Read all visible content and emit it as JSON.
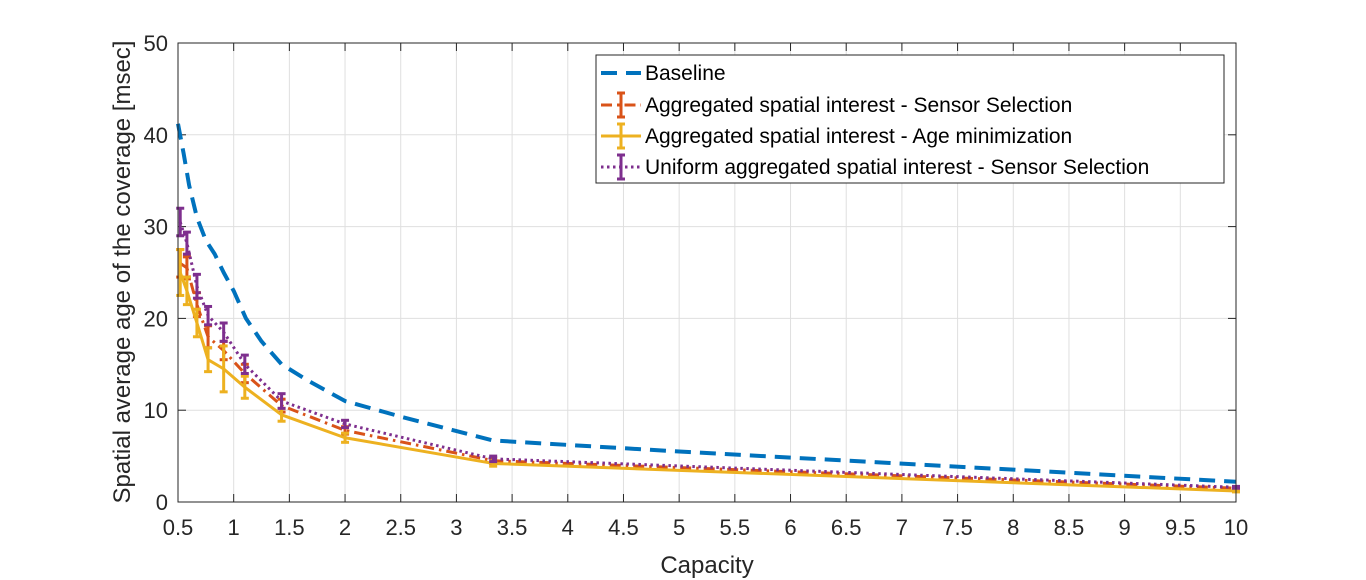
{
  "chart_data": {
    "type": "line",
    "xlabel": "Capacity",
    "ylabel": "Spatial average age of the coverage [msec]",
    "xlim": [
      0.5,
      10
    ],
    "ylim": [
      0,
      50
    ],
    "xticks": [
      "0.5",
      "1",
      "1.5",
      "2",
      "2.5",
      "3",
      "3.5",
      "4",
      "4.5",
      "5",
      "5.5",
      "6",
      "6.5",
      "7",
      "7.5",
      "8",
      "8.5",
      "9",
      "9.5",
      "10"
    ],
    "yticks": [
      "0",
      "10",
      "20",
      "30",
      "40",
      "50"
    ],
    "grid": true,
    "legend_position": "top-right",
    "series": [
      {
        "name": "Baseline",
        "color": "#0072BD",
        "style": "dashed",
        "errorbars": false,
        "x": [
          0.5,
          0.55,
          0.6,
          0.67,
          0.75,
          0.83,
          0.91,
          1.0,
          1.11,
          1.25,
          1.43,
          1.67,
          2.0,
          2.5,
          3.33,
          5.0,
          10.0
        ],
        "y": [
          41.2,
          38.0,
          34.5,
          31.0,
          28.5,
          27.0,
          25.0,
          23.0,
          20.0,
          17.5,
          15.0,
          13.2,
          11.0,
          9.3,
          6.7,
          5.5,
          2.2
        ]
      },
      {
        "name": "Aggregated spatial interest - Sensor Selection",
        "color": "#D95319",
        "style": "dashdot",
        "errorbars": true,
        "x": [
          0.52,
          0.58,
          0.67,
          0.77,
          0.91,
          1.1,
          1.43,
          2.0,
          3.33,
          10.0
        ],
        "y": [
          26.0,
          25.5,
          21.5,
          18.0,
          16.5,
          14.0,
          10.5,
          7.8,
          4.5,
          1.5
        ],
        "err": [
          1.5,
          1.2,
          1.3,
          1.2,
          1.0,
          1.0,
          0.7,
          0.4,
          0.3,
          0.1
        ]
      },
      {
        "name": "Aggregated spatial interest - Age minimization",
        "color": "#EDB120",
        "style": "solid",
        "errorbars": true,
        "x": [
          0.52,
          0.58,
          0.67,
          0.77,
          0.91,
          1.1,
          1.43,
          2.0,
          3.33,
          10.0
        ],
        "y": [
          25.0,
          23.0,
          19.5,
          15.5,
          14.5,
          12.5,
          9.5,
          7.0,
          4.2,
          1.2
        ],
        "err": [
          2.5,
          1.5,
          1.5,
          1.3,
          2.5,
          1.2,
          0.7,
          0.5,
          0.3,
          0.1
        ]
      },
      {
        "name": "Uniform aggregated spatial interest - Sensor Selection",
        "color": "#7E2F8E",
        "style": "dotted",
        "errorbars": true,
        "x": [
          0.52,
          0.58,
          0.67,
          0.77,
          0.91,
          1.1,
          1.43,
          2.0,
          3.33,
          10.0
        ],
        "y": [
          30.5,
          28.2,
          23.5,
          20.3,
          18.5,
          15.0,
          11.0,
          8.5,
          4.7,
          1.6
        ],
        "err": [
          1.5,
          1.2,
          1.3,
          1.0,
          1.0,
          1.0,
          0.8,
          0.4,
          0.3,
          0.1
        ]
      }
    ]
  }
}
